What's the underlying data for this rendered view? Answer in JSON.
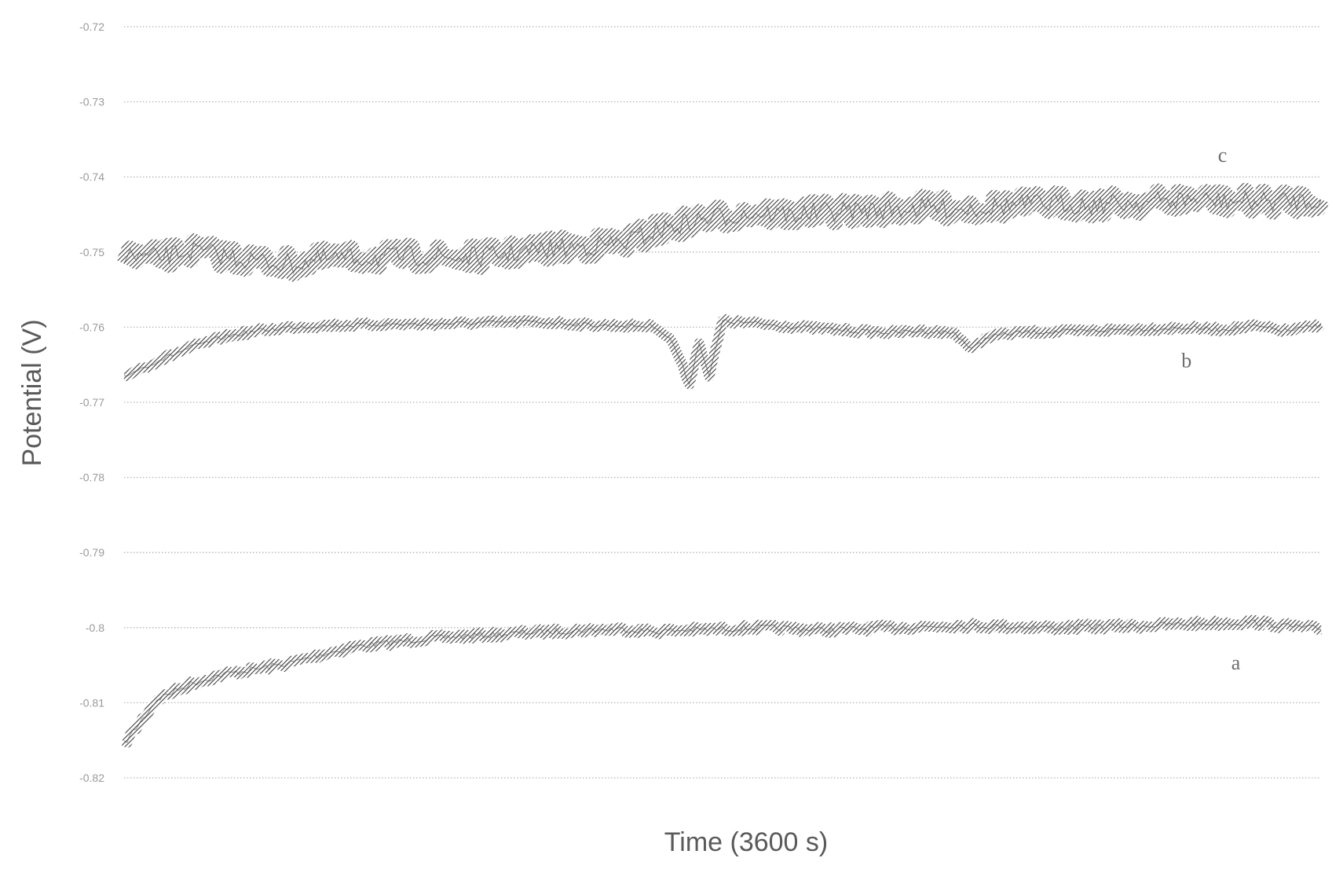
{
  "chart_data": {
    "type": "line",
    "title": "",
    "xlabel": "Time (3600 s)",
    "ylabel": "Potential (V)",
    "xlim": [
      0,
      3600
    ],
    "ylim": [
      -0.82,
      -0.72
    ],
    "y_ticks": [
      "-0.72",
      "-0.73",
      "-0.74",
      "-0.75",
      "-0.76",
      "-0.77",
      "-0.78",
      "-0.79",
      "-0.8",
      "-0.81",
      "-0.82"
    ],
    "grid": true,
    "legend": "none",
    "line_color": "#4a4a4a",
    "series": [
      {
        "name": "a",
        "x": [
          0,
          100,
          200,
          300,
          400,
          500,
          600,
          700,
          800,
          900,
          1000,
          1100,
          1200,
          1300,
          1400,
          1500,
          1600,
          1700,
          1800,
          1900,
          2000,
          2100,
          2200,
          2300,
          2400,
          2500,
          2600,
          2700,
          2800,
          2900,
          3000,
          3100,
          3200,
          3300,
          3400,
          3500,
          3600
        ],
        "y": [
          -0.8155,
          -0.8095,
          -0.8075,
          -0.8062,
          -0.8055,
          -0.8047,
          -0.8035,
          -0.8025,
          -0.802,
          -0.8015,
          -0.8012,
          -0.801,
          -0.8007,
          -0.8005,
          -0.8003,
          -0.8002,
          -0.8005,
          -0.8003,
          -0.8002,
          -0.8,
          -0.8001,
          -0.8003,
          -0.8002,
          -0.8,
          -0.7999,
          -0.7997,
          -0.7998,
          -0.7999,
          -0.8,
          -0.7999,
          -0.7998,
          -0.7997,
          -0.7995,
          -0.7994,
          -0.7993,
          -0.7998,
          -0.8002
        ]
      },
      {
        "name": "b",
        "x": [
          0,
          50,
          100,
          200,
          300,
          400,
          500,
          600,
          700,
          800,
          900,
          1000,
          1100,
          1200,
          1300,
          1400,
          1500,
          1600,
          1650,
          1700,
          1730,
          1760,
          1800,
          1900,
          2000,
          2100,
          2200,
          2300,
          2400,
          2500,
          2550,
          2600,
          2700,
          2800,
          2900,
          3000,
          3100,
          3200,
          3300,
          3400,
          3500,
          3600
        ],
        "y": [
          -0.7665,
          -0.7655,
          -0.7645,
          -0.7627,
          -0.7613,
          -0.7605,
          -0.76,
          -0.7598,
          -0.7597,
          -0.7596,
          -0.7596,
          -0.7595,
          -0.7594,
          -0.7593,
          -0.7594,
          -0.7597,
          -0.7598,
          -0.7599,
          -0.762,
          -0.7675,
          -0.762,
          -0.7665,
          -0.7592,
          -0.7595,
          -0.7599,
          -0.7602,
          -0.7605,
          -0.7607,
          -0.7605,
          -0.7608,
          -0.763,
          -0.7612,
          -0.7607,
          -0.7606,
          -0.7605,
          -0.7603,
          -0.7602,
          -0.7601,
          -0.7603,
          -0.7599,
          -0.7605,
          -0.7597
        ]
      },
      {
        "name": "c",
        "x": [
          0,
          100,
          200,
          300,
          400,
          500,
          600,
          700,
          800,
          900,
          1000,
          1100,
          1200,
          1300,
          1400,
          1500,
          1600,
          1700,
          1800,
          1900,
          2000,
          2100,
          2200,
          2300,
          2400,
          2500,
          2600,
          2700,
          2800,
          2900,
          3000,
          3100,
          3200,
          3300,
          3400,
          3500,
          3600
        ],
        "y": [
          -0.7505,
          -0.7508,
          -0.7498,
          -0.7505,
          -0.7512,
          -0.7516,
          -0.751,
          -0.7508,
          -0.7507,
          -0.7505,
          -0.7508,
          -0.7505,
          -0.75,
          -0.7495,
          -0.7492,
          -0.7488,
          -0.7472,
          -0.746,
          -0.7452,
          -0.7448,
          -0.745,
          -0.7447,
          -0.7445,
          -0.7443,
          -0.7441,
          -0.7442,
          -0.744,
          -0.7437,
          -0.7435,
          -0.7437,
          -0.7435,
          -0.7433,
          -0.743,
          -0.7432,
          -0.7433,
          -0.7432,
          -0.743
        ]
      }
    ]
  }
}
